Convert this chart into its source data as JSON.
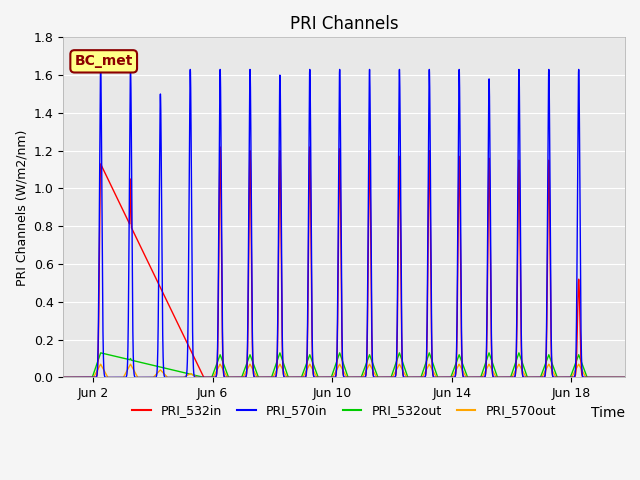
{
  "title": "PRI Channels",
  "xlabel": "Time",
  "ylabel": "PRI Channels (W/m2/nm)",
  "ylim": [
    0,
    1.8
  ],
  "yticks": [
    0.0,
    0.2,
    0.4,
    0.6,
    0.8,
    1.0,
    1.2,
    1.4,
    1.6,
    1.8
  ],
  "annotation_text": "BC_met",
  "annotation_bbox_facecolor": "#ffff88",
  "annotation_bbox_edgecolor": "#8B0000",
  "line_colors": {
    "PRI_532in": "#FF0000",
    "PRI_570in": "#0000FF",
    "PRI_532out": "#00CC00",
    "PRI_570out": "#FFA500"
  },
  "line_labels": [
    "PRI_532in",
    "PRI_570in",
    "PRI_532out",
    "PRI_570out"
  ],
  "figsize": [
    6.4,
    4.8
  ],
  "dpi": 100,
  "plot_facecolor": "#e8e8e8",
  "fig_facecolor": "#f5f5f5"
}
